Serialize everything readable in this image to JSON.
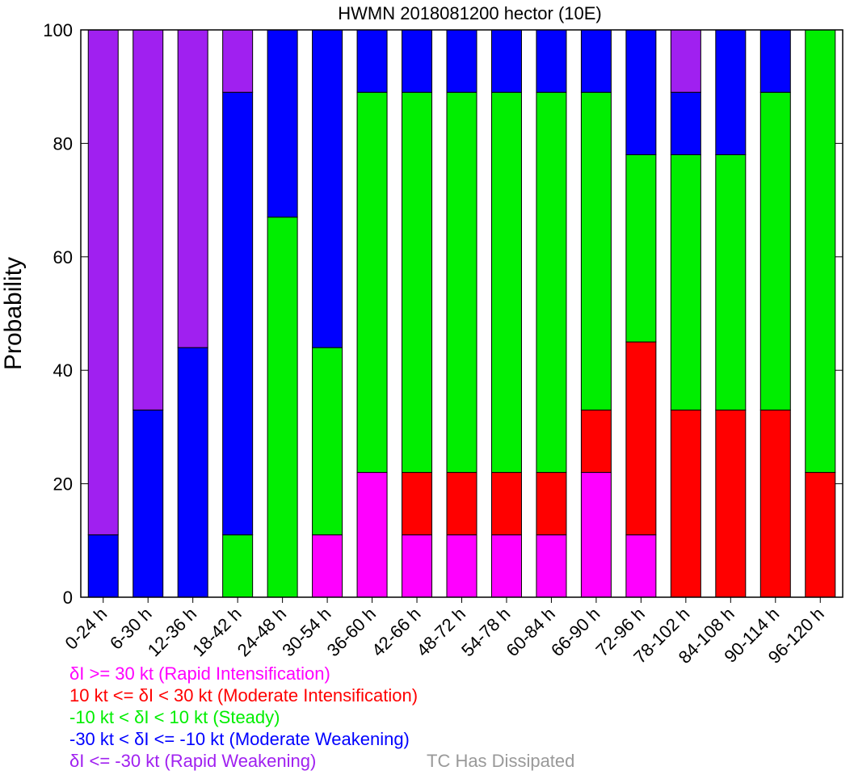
{
  "chart_data": {
    "type": "bar",
    "stacked": true,
    "title": "HWMN 2018081200 hector (10E)",
    "xlabel": "",
    "ylabel": "Probability",
    "ylim": [
      0,
      100
    ],
    "yticks": [
      0,
      20,
      40,
      60,
      80,
      100
    ],
    "categories": [
      "0-24 h",
      "6-30 h",
      "12-36 h",
      "18-42 h",
      "24-48 h",
      "30-54 h",
      "36-60 h",
      "42-66 h",
      "48-72 h",
      "54-78 h",
      "60-84 h",
      "66-90 h",
      "72-96 h",
      "78-102 h",
      "84-108 h",
      "90-114 h",
      "96-120 h"
    ],
    "series": [
      {
        "name": "Rapid Intensification",
        "color": "#ff00ff",
        "values": [
          0,
          0,
          0,
          0,
          0,
          11,
          22,
          11,
          11,
          11,
          11,
          22,
          11,
          0,
          0,
          0,
          0
        ]
      },
      {
        "name": "Moderate Intensification",
        "color": "#ff0000",
        "values": [
          0,
          0,
          0,
          0,
          0,
          0,
          0,
          11,
          11,
          11,
          11,
          11,
          34,
          33,
          33,
          33,
          22
        ]
      },
      {
        "name": "Steady",
        "color": "#00ee00",
        "values": [
          0,
          0,
          0,
          11,
          67,
          33,
          67,
          67,
          67,
          67,
          67,
          56,
          33,
          45,
          45,
          56,
          78
        ]
      },
      {
        "name": "Moderate Weakening",
        "color": "#0000ff",
        "values": [
          11,
          33,
          44,
          78,
          33,
          56,
          11,
          11,
          11,
          11,
          11,
          11,
          22,
          11,
          22,
          11,
          0
        ]
      },
      {
        "name": "Rapid Weakening",
        "color": "#a020f0",
        "values": [
          89,
          67,
          56,
          11,
          0,
          0,
          0,
          0,
          0,
          0,
          0,
          0,
          0,
          11,
          0,
          0,
          0
        ]
      }
    ]
  },
  "legend": [
    {
      "text": "δI >= 30 kt (Rapid Intensification)",
      "color": "#ff00ff"
    },
    {
      "text": "10 kt <= δI < 30 kt (Moderate Intensification)",
      "color": "#ff0000"
    },
    {
      "text": "-10 kt < δI < 10 kt (Steady)",
      "color": "#00ee00"
    },
    {
      "text": "-30 kt < δI <= -10 kt (Moderate Weakening)",
      "color": "#0000ff"
    },
    {
      "text": "δI <= -30 kt (Rapid Weakening)",
      "color": "#a020f0"
    }
  ],
  "dissipated": {
    "text": "TC Has Dissipated",
    "color": "#999999"
  }
}
